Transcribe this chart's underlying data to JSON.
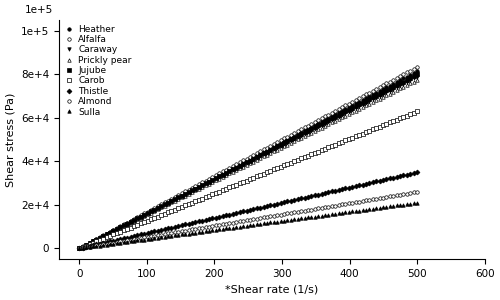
{
  "title": "",
  "xlabel": "*Shear rate (1/s)",
  "ylabel": "Shear stress (Pa)",
  "xlim": [
    -30,
    600
  ],
  "ylim": [
    -5000,
    105000
  ],
  "xticks": [
    0,
    100,
    200,
    300,
    400,
    500,
    600
  ],
  "yticks": [
    0,
    20000,
    40000,
    60000,
    80000,
    100000
  ],
  "ytick_labels": [
    "0",
    "2e+4",
    "4e+4",
    "6e+4",
    "8e+4",
    "1e+5"
  ],
  "yexp_label": "1e+5",
  "series": [
    {
      "label": "Heather",
      "slope": 163,
      "marker": "o",
      "filled": true,
      "markersize": 2.5
    },
    {
      "label": "Alfalfa",
      "slope": 167,
      "marker": "o",
      "filled": false,
      "markersize": 2.5
    },
    {
      "label": "Caraway",
      "slope": 158,
      "marker": "v",
      "filled": true,
      "markersize": 2.5
    },
    {
      "label": "Prickly pear",
      "slope": 155,
      "marker": "^",
      "filled": false,
      "markersize": 2.5
    },
    {
      "label": "Jujube",
      "slope": 160,
      "marker": "s",
      "filled": true,
      "markersize": 2.5
    },
    {
      "label": "Carob",
      "slope": 126,
      "marker": "s",
      "filled": false,
      "markersize": 3.5
    },
    {
      "label": "Thistle",
      "slope": 70,
      "marker": "D",
      "filled": true,
      "markersize": 2.5
    },
    {
      "label": "Almond",
      "slope": 52,
      "marker": "o",
      "filled": false,
      "markersize": 2.5
    },
    {
      "label": "Sulla",
      "slope": 42,
      "marker": "^",
      "filled": true,
      "markersize": 2.5
    }
  ],
  "x_start": 0,
  "x_end": 500,
  "n_points": 100,
  "color": "black",
  "linewidth": 0,
  "legend_fontsize": 6.5,
  "axis_fontsize": 8,
  "tick_fontsize": 7.5
}
